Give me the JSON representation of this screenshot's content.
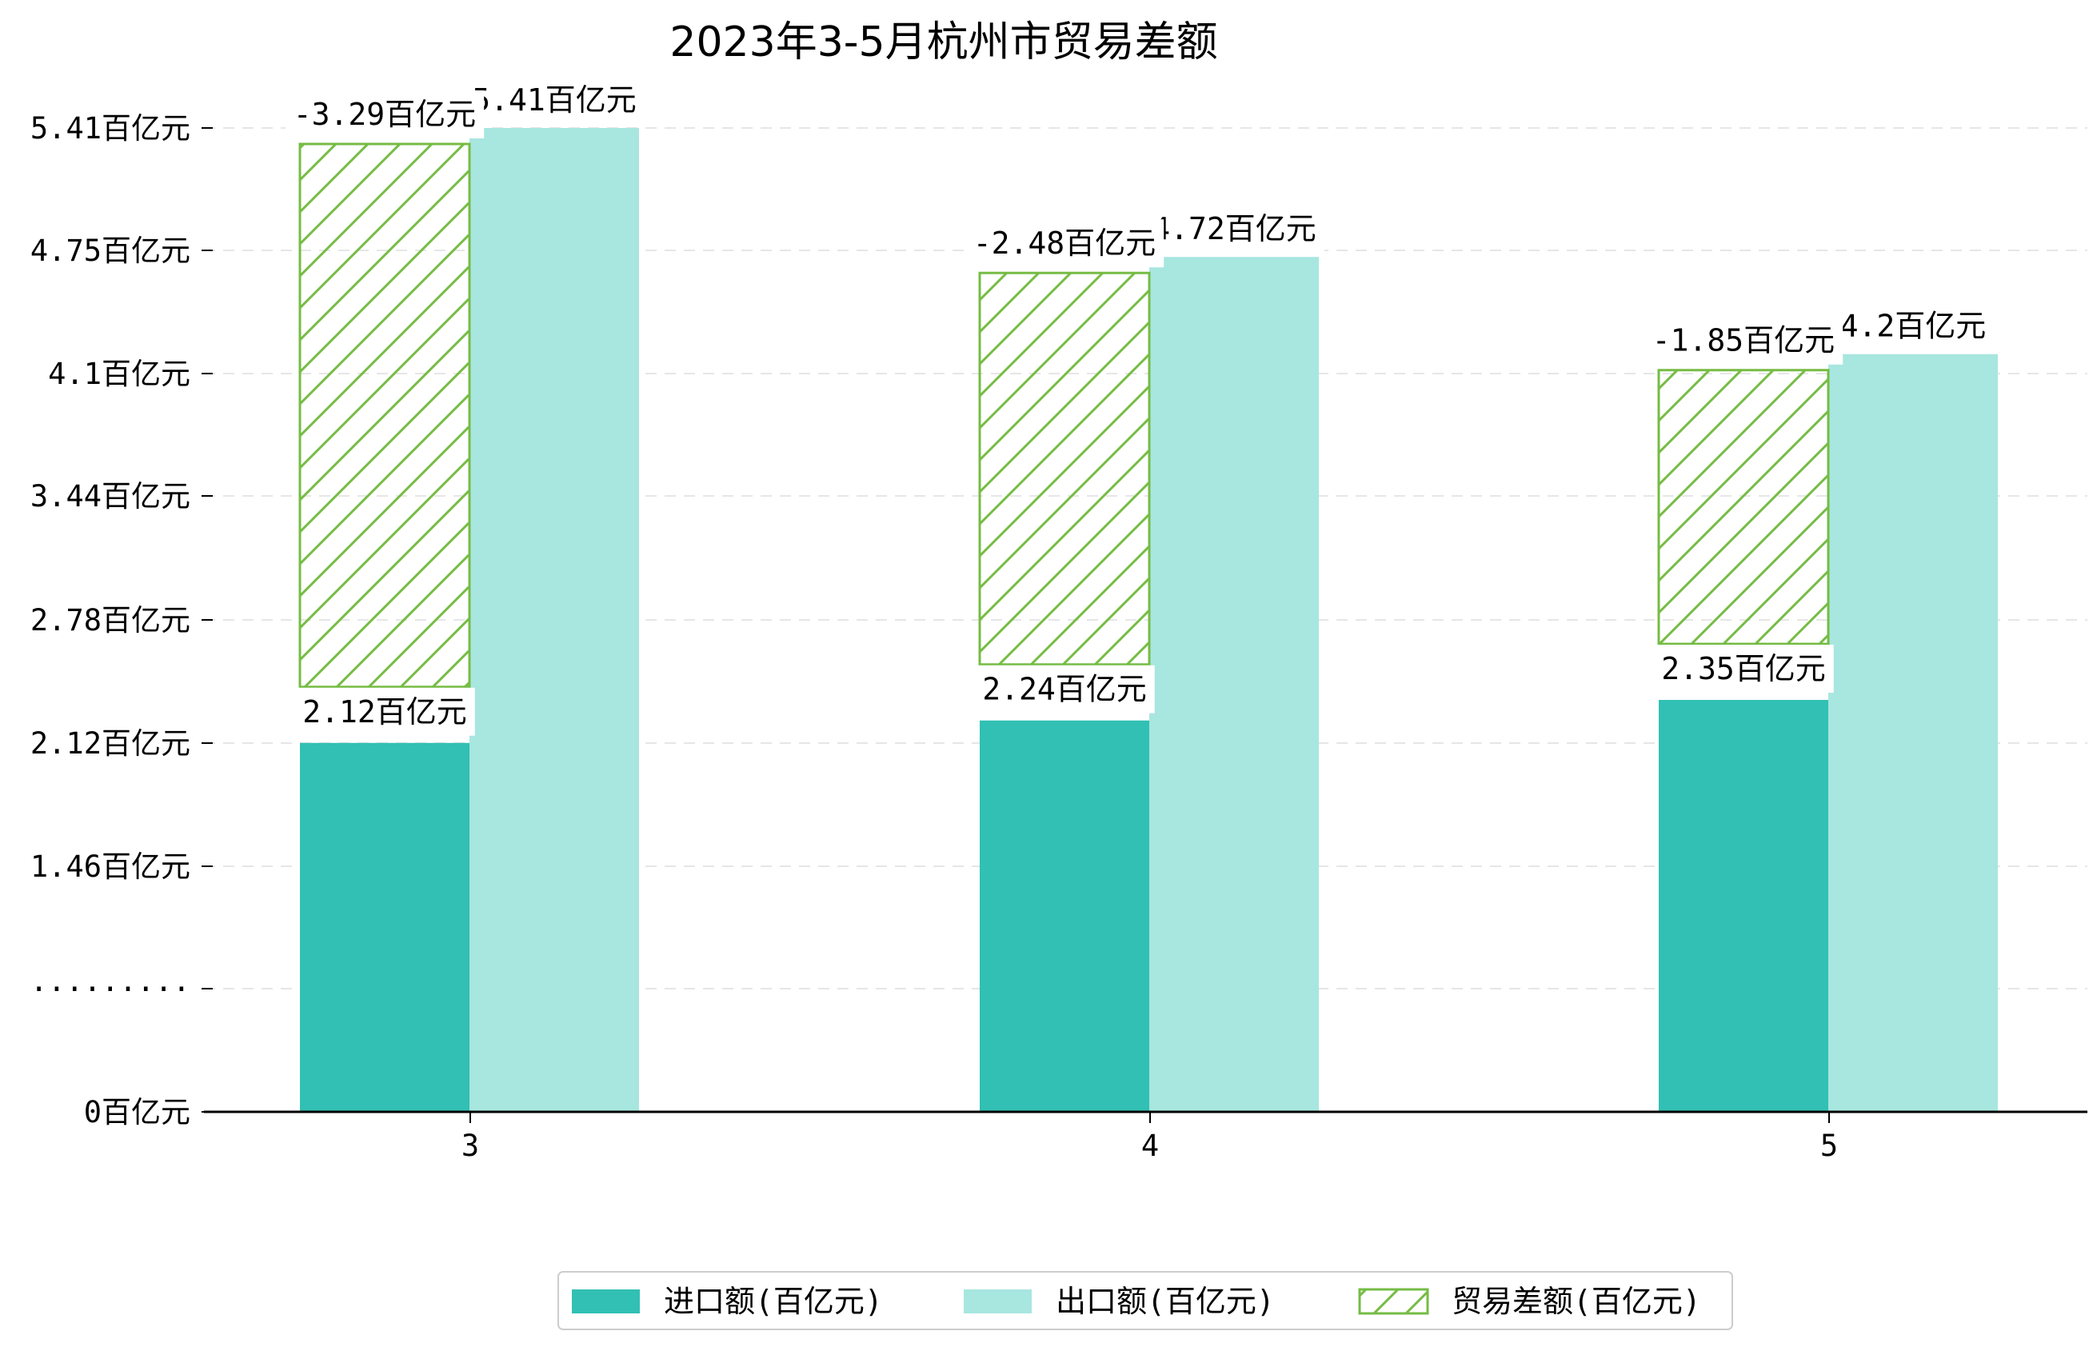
{
  "chart_data": {
    "type": "bar",
    "title": "2023年3-5月杭州市贸易差额",
    "xlabel": "",
    "ylabel": "",
    "categories": [
      "3",
      "4",
      "5"
    ],
    "y_ticks": [
      "0百亿元",
      "·········",
      "1.46百亿元",
      "2.12百亿元",
      "2.78百亿元",
      "3.44百亿元",
      "4.1百亿元",
      "4.75百亿元",
      "5.41百亿元"
    ],
    "y_break_note": "axis is broken below 1.46",
    "series": [
      {
        "name": "进口额(百亿元)",
        "values": [
          2.12,
          2.24,
          2.35
        ],
        "color": "#31c0b3",
        "labels": [
          "2.12百亿元",
          "2.24百亿元",
          "2.35百亿元"
        ]
      },
      {
        "name": "出口额(百亿元)",
        "values": [
          5.41,
          4.72,
          4.2
        ],
        "color": "#a8e6e0",
        "labels": [
          "5.41百亿元",
          "4.72百亿元",
          "4.2百亿元"
        ]
      },
      {
        "name": "贸易差额(百亿元)",
        "values": [
          -3.29,
          -2.48,
          -1.85
        ],
        "color": "#76bc44",
        "hatch": true,
        "labels": [
          "-3.29百亿元",
          "-2.48百亿元",
          "-1.85百亿元"
        ]
      }
    ],
    "legend_position": "bottom-center",
    "grid": "horizontal dashed"
  }
}
